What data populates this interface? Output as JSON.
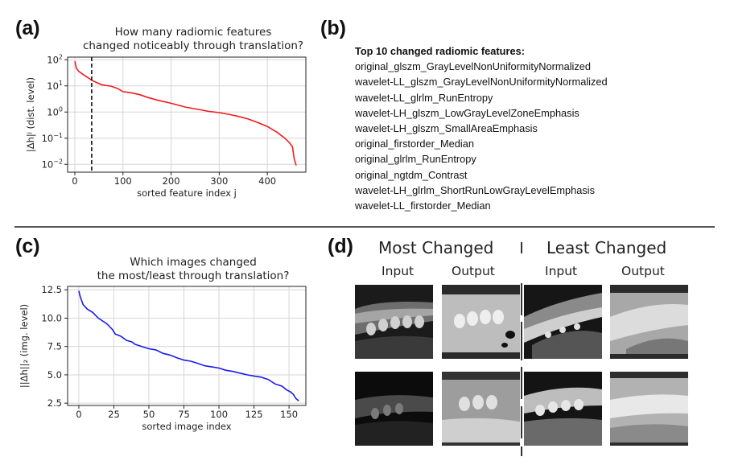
{
  "panels": {
    "a": {
      "letter": "(a)",
      "title_line1": "How many radiomic features",
      "title_line2": "changed noticeably through translation?"
    },
    "b": {
      "letter": "(b)",
      "header": "Top 10 changed radiomic features:",
      "features": [
        "original_glszm_GrayLevelNonUniformityNormalized",
        "wavelet-LL_glszm_GrayLevelNonUniformityNormalized",
        "wavelet-LL_glrlm_RunEntropy",
        "wavelet-LH_glszm_LowGrayLevelZoneEmphasis",
        "wavelet-LH_glszm_SmallAreaEmphasis",
        "original_firstorder_Median",
        "original_glrlm_RunEntropy",
        "original_ngtdm_Contrast",
        "wavelet-LH_glrlm_ShortRunLowGrayLevelEmphasis",
        "wavelet-LL_firstorder_Median"
      ]
    },
    "c": {
      "letter": "(c)",
      "title_line1": "Which images changed",
      "title_line2": "the most/least through translation?"
    },
    "d": {
      "letter": "(d)",
      "most_changed": "Most Changed",
      "least_changed": "Least Changed",
      "col_labels": [
        "Input",
        "Output",
        "Input",
        "Output"
      ]
    }
  },
  "chart_data": [
    {
      "type": "line",
      "panel": "a",
      "title": "How many radiomic features changed noticeably through translation?",
      "xlabel": "sorted feature index j",
      "ylabel": "|Δh|ʲ (dist. level)",
      "yscale": "log",
      "xlim": [
        -15,
        480
      ],
      "ylim_exp": [
        -2.3,
        2.1
      ],
      "xticks": [
        0,
        100,
        200,
        300,
        400
      ],
      "yticks": [
        -2,
        -1,
        0,
        1,
        2
      ],
      "ytick_labels": [
        "10",
        "10",
        "10",
        "10",
        "10"
      ],
      "ytick_sups": [
        "−2",
        "−1",
        "0",
        "1",
        "2"
      ],
      "grid": true,
      "color": "#ee1c1c",
      "threshold_x": 35,
      "threshold_style": "dashed",
      "threshold_color": "#111111",
      "series": [
        {
          "x": [
            0,
            3,
            8,
            15,
            25,
            35,
            45,
            55,
            65,
            75,
            90,
            100,
            110,
            120,
            135,
            150,
            170,
            200,
            230,
            260,
            280,
            300,
            320,
            340,
            360,
            380,
            400,
            420,
            435,
            445,
            452,
            456,
            460
          ],
          "y": [
            88,
            48,
            36,
            29,
            22,
            16.5,
            13.5,
            11.2,
            10.3,
            9.8,
            7.8,
            6.0,
            5.7,
            5.3,
            4.6,
            3.7,
            2.9,
            2.15,
            1.55,
            1.22,
            1.05,
            0.95,
            0.82,
            0.68,
            0.54,
            0.4,
            0.28,
            0.17,
            0.105,
            0.07,
            0.048,
            0.016,
            0.009
          ]
        }
      ]
    },
    {
      "type": "line",
      "panel": "c",
      "title": "Which images changed the most/least through translation?",
      "xlabel": "sorted image index",
      "ylabel": "||Δh||₂ (img. level)",
      "xlim": [
        -8,
        162
      ],
      "ylim": [
        2.3,
        12.8
      ],
      "xticks": [
        0,
        25,
        50,
        75,
        100,
        125,
        150
      ],
      "yticks": [
        2.5,
        5.0,
        7.5,
        10.0,
        12.5
      ],
      "ytick_labels": [
        "2.5",
        "5.0",
        "7.5",
        "10.0",
        "12.5"
      ],
      "grid": true,
      "color": "#1a1aee",
      "series": [
        {
          "x": [
            0,
            1,
            3,
            6,
            10,
            14,
            17,
            20,
            24,
            26,
            30,
            34,
            38,
            40,
            45,
            50,
            55,
            60,
            65,
            70,
            75,
            80,
            85,
            90,
            95,
            100,
            105,
            110,
            115,
            120,
            125,
            130,
            135,
            140,
            145,
            148,
            151,
            153,
            155,
            157
          ],
          "y": [
            12.4,
            11.9,
            11.2,
            10.8,
            10.5,
            10.0,
            9.75,
            9.5,
            9.0,
            8.6,
            8.4,
            8.05,
            7.9,
            7.7,
            7.5,
            7.3,
            7.2,
            6.9,
            6.75,
            6.5,
            6.3,
            6.2,
            6.0,
            5.8,
            5.7,
            5.6,
            5.4,
            5.3,
            5.15,
            5.0,
            4.9,
            4.8,
            4.6,
            4.2,
            4.0,
            3.7,
            3.5,
            3.3,
            2.9,
            2.7
          ]
        }
      ]
    }
  ]
}
